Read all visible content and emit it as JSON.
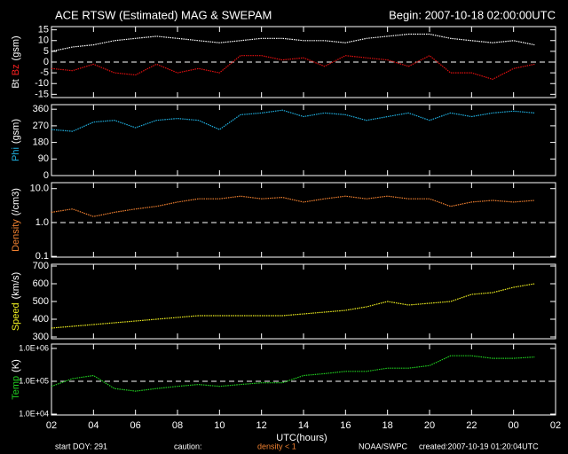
{
  "header": {
    "title": "ACE RTSW (Estimated) MAG & SWEPAM",
    "begin": "Begin: 2007-10-18 02:00:00UTC"
  },
  "xaxis": {
    "lim": [
      2,
      26
    ],
    "label": "UTC(hours)",
    "ticks": [
      {
        "value": 2,
        "label": "02"
      },
      {
        "value": 4,
        "label": "04"
      },
      {
        "value": 6,
        "label": "06"
      },
      {
        "value": 8,
        "label": "08"
      },
      10,
      12,
      14,
      16,
      18,
      20,
      22,
      {
        "value": 24,
        "label": "00"
      },
      {
        "value": 26,
        "label": "02"
      }
    ]
  },
  "footer": {
    "start": "start DOY: 291",
    "caution": "caution:",
    "density_note": "density < 1",
    "source": "NOAA/SWPC",
    "created": "created:2007-10-19 01:20:04UTC"
  },
  "chart_data": [
    {
      "type": "line",
      "ylabel": [
        {
          "text": "Bt",
          "color": "#ffffff"
        },
        {
          "text": "Bz",
          "color": "#ff2020"
        },
        {
          "text": "(gsm)",
          "color": "#ffffff"
        }
      ],
      "x": [
        2,
        3,
        4,
        5,
        6,
        7,
        8,
        9,
        10,
        11,
        12,
        13,
        14,
        15,
        16,
        17,
        18,
        19,
        20,
        21,
        22,
        23,
        24,
        25
      ],
      "ylim": [
        -16.5,
        16.5
      ],
      "yticks": [
        -15,
        -10,
        -5,
        0,
        5,
        10,
        15
      ],
      "reference": 0,
      "log": false,
      "series": [
        {
          "name": "Bt",
          "color": "#ffffff",
          "values": [
            5,
            7,
            8,
            10,
            11,
            12,
            11,
            10,
            9,
            10,
            11,
            11,
            10,
            10,
            9,
            11,
            12,
            13,
            13,
            11,
            10,
            9,
            10,
            8
          ]
        },
        {
          "name": "Bz",
          "color": "#e01010",
          "values": [
            -3,
            -4,
            -1,
            -5,
            -6,
            -1,
            -5,
            -3,
            -5,
            3,
            3,
            1,
            2,
            -2,
            3,
            2,
            1,
            -2,
            3,
            -5,
            -5,
            -8,
            -3,
            -1
          ]
        }
      ]
    },
    {
      "type": "line",
      "ylabel": [
        {
          "text": "Phi",
          "color": "#20b0e0"
        },
        {
          "text": "(gsm)",
          "color": "#ffffff"
        }
      ],
      "x": [
        2,
        3,
        4,
        5,
        6,
        7,
        8,
        9,
        10,
        11,
        12,
        13,
        14,
        15,
        16,
        17,
        18,
        19,
        20,
        21,
        22,
        23,
        24,
        25
      ],
      "ylim": [
        0,
        385
      ],
      "yticks": [
        0,
        90,
        180,
        270,
        360
      ],
      "log": false,
      "series": [
        {
          "name": "Phi",
          "color": "#20b0e0",
          "values": [
            250,
            240,
            290,
            300,
            260,
            300,
            310,
            300,
            250,
            330,
            340,
            355,
            320,
            340,
            330,
            300,
            320,
            340,
            300,
            340,
            320,
            340,
            350,
            340
          ]
        }
      ]
    },
    {
      "type": "line",
      "ylabel": [
        {
          "text": "Density",
          "color": "#f08030"
        },
        {
          "text": "(/cm3)",
          "color": "#ffffff"
        }
      ],
      "x": [
        2,
        3,
        4,
        5,
        6,
        7,
        8,
        9,
        10,
        11,
        12,
        13,
        14,
        15,
        16,
        17,
        18,
        19,
        20,
        21,
        22,
        23,
        24,
        25
      ],
      "ylim": [
        0.095,
        15
      ],
      "yticks": [
        0.1,
        {
          "value": 1,
          "label": "1.0"
        },
        {
          "value": 10,
          "label": "10.0"
        }
      ],
      "reference": 1,
      "log": true,
      "series": [
        {
          "name": "Density",
          "color": "#f08030",
          "values": [
            2,
            2.5,
            1.5,
            2,
            2.5,
            3,
            4,
            5,
            5,
            6,
            5,
            5.5,
            4,
            5,
            6,
            5,
            6,
            5,
            5,
            3,
            4,
            4.5,
            4,
            4.5
          ]
        }
      ]
    },
    {
      "type": "line",
      "ylabel": [
        {
          "text": "Speed",
          "color": "#f0f020"
        },
        {
          "text": "(km/s)",
          "color": "#ffffff"
        }
      ],
      "x": [
        2,
        3,
        4,
        5,
        6,
        7,
        8,
        9,
        10,
        11,
        12,
        13,
        14,
        15,
        16,
        17,
        18,
        19,
        20,
        21,
        22,
        23,
        24,
        25
      ],
      "ylim": [
        290,
        710
      ],
      "yticks": [
        300,
        400,
        500,
        600,
        700
      ],
      "log": false,
      "series": [
        {
          "name": "Speed",
          "color": "#f0f020",
          "values": [
            350,
            360,
            370,
            380,
            390,
            400,
            410,
            420,
            420,
            420,
            420,
            420,
            430,
            440,
            450,
            470,
            500,
            480,
            490,
            500,
            540,
            550,
            580,
            600
          ]
        }
      ]
    },
    {
      "type": "line",
      "ylabel": [
        {
          "text": "Temp",
          "color": "#20d020"
        },
        {
          "text": "(K)",
          "color": "#ffffff"
        }
      ],
      "x": [
        2,
        3,
        4,
        5,
        6,
        7,
        8,
        9,
        10,
        11,
        12,
        13,
        14,
        15,
        16,
        17,
        18,
        19,
        20,
        21,
        22,
        23,
        24,
        25
      ],
      "ylim": [
        9400,
        1360000
      ],
      "yticks": [
        {
          "value": 10000,
          "label": "1.0E+04"
        },
        {
          "value": 100000,
          "label": "1.0E+05"
        },
        {
          "value": 1000000,
          "label": "1.0E+06"
        }
      ],
      "reference": 100000,
      "log": true,
      "series": [
        {
          "name": "Temp",
          "color": "#20d020",
          "values": [
            70000,
            120000,
            150000,
            60000,
            50000,
            60000,
            70000,
            80000,
            70000,
            80000,
            90000,
            90000,
            150000,
            170000,
            200000,
            200000,
            250000,
            250000,
            300000,
            600000,
            600000,
            500000,
            500000,
            550000
          ]
        }
      ]
    }
  ]
}
